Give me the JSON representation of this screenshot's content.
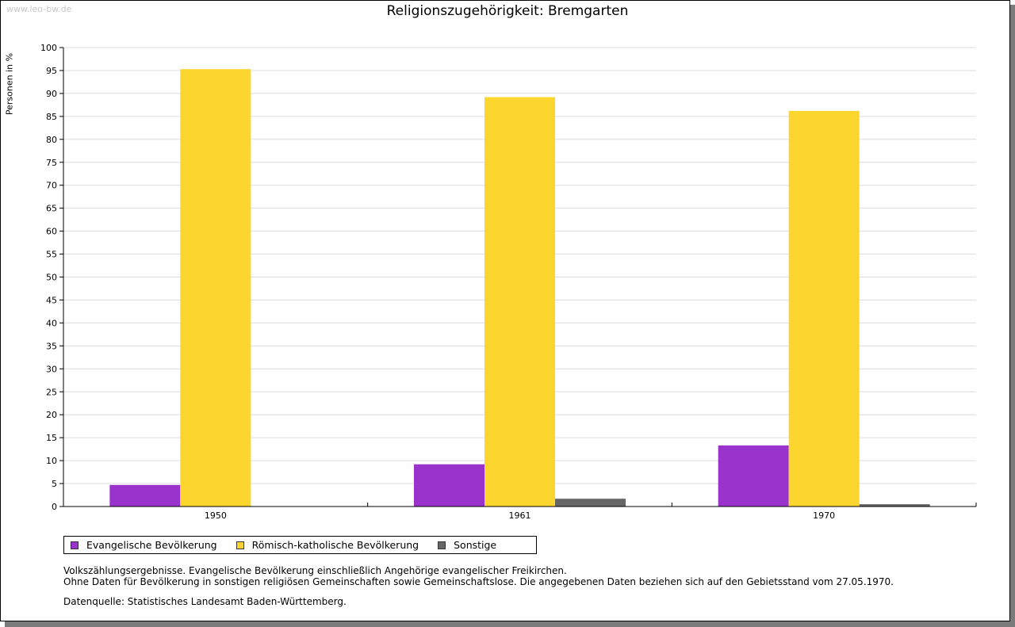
{
  "watermark": "www.leo-bw.de",
  "chart_data": {
    "type": "bar",
    "title": "Religionszugehörigkeit: Bremgarten",
    "ylabel": "Personen in %",
    "xlabel": "",
    "ylim": [
      0,
      100
    ],
    "ytick_step": 5,
    "grid": true,
    "categories": [
      "1950",
      "1961",
      "1970"
    ],
    "series": [
      {
        "name": "Evangelische Bevölkerung",
        "color": "#9933cc",
        "values": [
          4.7,
          9.2,
          13.3
        ]
      },
      {
        "name": "Römisch-katholische Bevölkerung",
        "color": "#fcd52e",
        "values": [
          95.3,
          89.2,
          86.2
        ]
      },
      {
        "name": "Sonstige",
        "color": "#666666",
        "values": [
          null,
          1.7,
          0.5
        ]
      }
    ],
    "legend_position": "bottom-left"
  },
  "notes": {
    "line1": "Volkszählungsergebnisse. Evangelische Bevölkerung einschließlich Angehörige evangelischer Freikirchen.",
    "line2": "Ohne Daten für Bevölkerung in sonstigen religiösen Gemeinschaften sowie Gemeinschaftslose. Die angegebenen Daten beziehen sich auf den Gebietsstand vom 27.05.1970."
  },
  "source": "Datenquelle: Statistisches Landesamt Baden-Württemberg."
}
